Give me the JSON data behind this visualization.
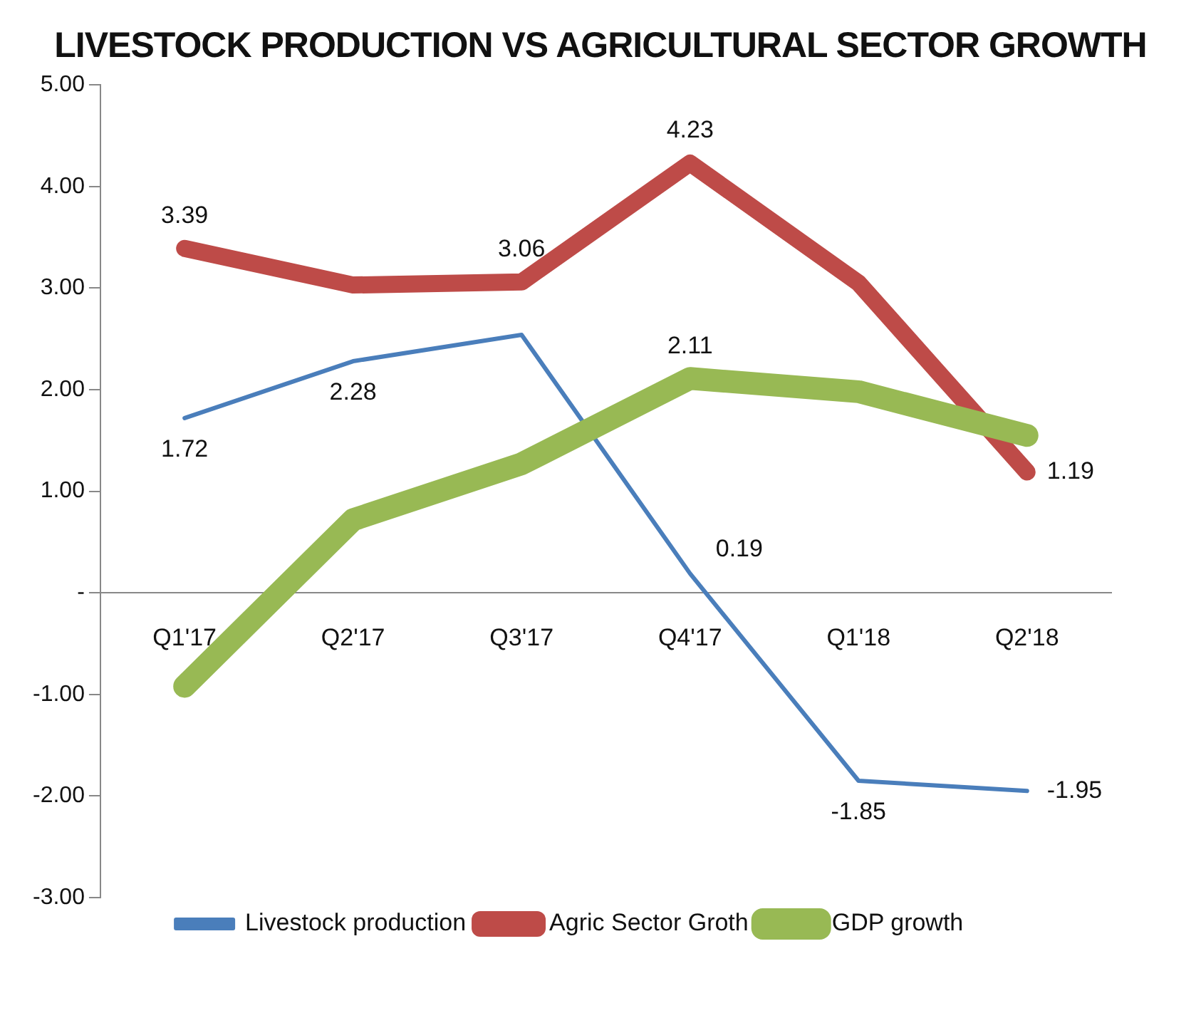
{
  "chart_data": {
    "type": "line",
    "title": "LIVESTOCK PRODUCTION VS AGRICULTURAL SECTOR GROWTH",
    "categories": [
      "Q1'17",
      "Q2'17",
      "Q3'17",
      "Q4'17",
      "Q1'18",
      "Q2'18"
    ],
    "series": [
      {
        "name": "Livestock production",
        "color": "#4a7ebb",
        "values": [
          1.72,
          2.28,
          2.54,
          0.19,
          -1.85,
          -1.95
        ],
        "value_labels": [
          "1.72",
          "2.28",
          null,
          "0.19",
          "-1.85",
          "-1.95"
        ]
      },
      {
        "name": "Agric Sector Groth",
        "color": "#be4b48",
        "values": [
          3.39,
          3.03,
          3.06,
          4.23,
          3.05,
          1.19
        ],
        "value_labels": [
          "3.39",
          null,
          "3.06",
          "4.23",
          null,
          "1.19"
        ]
      },
      {
        "name": "GDP growth",
        "color": "#98b954",
        "values": [
          -0.92,
          0.72,
          1.27,
          2.11,
          1.98,
          1.55
        ],
        "value_labels": [
          null,
          null,
          null,
          "2.11",
          null,
          null
        ]
      }
    ],
    "ylim": [
      -3,
      5
    ],
    "yticks": [
      {
        "value": -3,
        "label": "-3.00"
      },
      {
        "value": -2,
        "label": "-2.00"
      },
      {
        "value": -1,
        "label": "-1.00"
      },
      {
        "value": 0,
        "label": "-"
      },
      {
        "value": 1,
        "label": "1.00"
      },
      {
        "value": 2,
        "label": "2.00"
      },
      {
        "value": 3,
        "label": "3.00"
      },
      {
        "value": 4,
        "label": "4.00"
      },
      {
        "value": 5,
        "label": "5.00"
      }
    ],
    "grid": false,
    "legend": "bottom",
    "marker": "none",
    "line_style": "solid"
  }
}
